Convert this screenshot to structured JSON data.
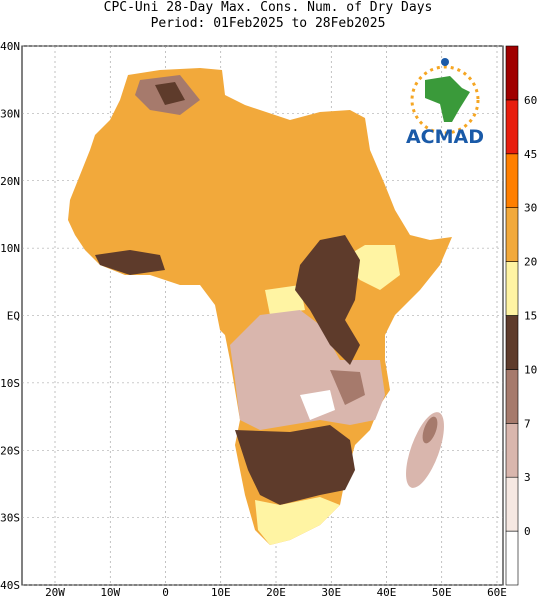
{
  "title": [
    "CPC-Uni 28-Day Max. Cons. Num. of Dry Days",
    "Period: 01Feb2025 to 28Feb2025"
  ],
  "lon_labels": [
    "20W",
    "10W",
    "0",
    "10E",
    "20E",
    "30E",
    "40E",
    "50E",
    "60E"
  ],
  "lat_labels": [
    "40N",
    "30N",
    "20N",
    "10N",
    "EQ",
    "10S",
    "20S",
    "30S",
    "40S"
  ],
  "colorbar": {
    "levels": [
      0,
      3,
      7,
      10,
      15,
      20,
      30,
      45,
      60
    ],
    "colors": [
      "#ffffff",
      "#f6e8e2",
      "#d9b6ad",
      "#a67a6c",
      "#5e3b2b",
      "#fff4a3",
      "#f2a93b",
      "#ff7f00",
      "#e81e0e",
      "#a00000"
    ]
  },
  "logo": "ACMAD"
}
